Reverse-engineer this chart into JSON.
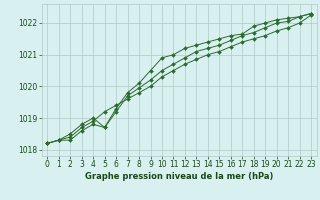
{
  "x": [
    0,
    1,
    2,
    3,
    4,
    5,
    6,
    7,
    8,
    9,
    10,
    11,
    12,
    13,
    14,
    15,
    16,
    17,
    18,
    19,
    20,
    21,
    22,
    23
  ],
  "line1": [
    1018.2,
    1018.3,
    1018.3,
    1018.6,
    1018.8,
    1018.7,
    1019.3,
    1019.8,
    1020.1,
    1020.5,
    1020.9,
    1021.0,
    1021.2,
    1021.3,
    1021.4,
    1021.5,
    1021.6,
    1021.65,
    1021.9,
    1022.0,
    1022.1,
    1022.15,
    1022.2,
    1022.3
  ],
  "line2": [
    1018.2,
    1018.3,
    1018.4,
    1018.7,
    1018.9,
    1019.2,
    1019.4,
    1019.6,
    1019.8,
    1020.0,
    1020.3,
    1020.5,
    1020.7,
    1020.85,
    1021.0,
    1021.1,
    1021.25,
    1021.4,
    1021.5,
    1021.6,
    1021.75,
    1021.85,
    1022.0,
    1022.25
  ],
  "line3": [
    1018.2,
    1018.3,
    1018.5,
    1018.8,
    1019.0,
    1018.7,
    1019.2,
    1019.7,
    1019.95,
    1020.2,
    1020.5,
    1020.7,
    1020.9,
    1021.1,
    1021.2,
    1021.3,
    1021.45,
    1021.6,
    1021.7,
    1021.85,
    1022.0,
    1022.05,
    1022.2,
    1022.3
  ],
  "line_color": "#2d6a2d",
  "marker": "D",
  "marker_size": 2,
  "bg_color": "#d8f0f0",
  "grid_color": "#b0c8c8",
  "text_color": "#1a4a1a",
  "xlabel": "Graphe pression niveau de la mer (hPa)",
  "ylim": [
    1017.8,
    1022.6
  ],
  "yticks": [
    1018,
    1019,
    1020,
    1021,
    1022
  ],
  "xticks": [
    0,
    1,
    2,
    3,
    4,
    5,
    6,
    7,
    8,
    9,
    10,
    11,
    12,
    13,
    14,
    15,
    16,
    17,
    18,
    19,
    20,
    21,
    22,
    23
  ]
}
